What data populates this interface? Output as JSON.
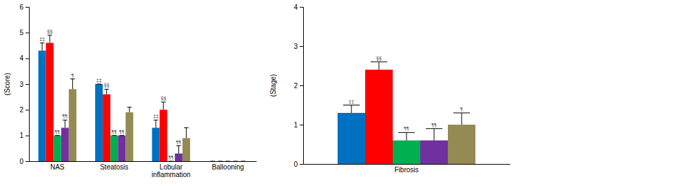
{
  "chart_data": [
    {
      "type": "bar",
      "y_label": "(Score)",
      "categories": [
        "NAS",
        "Steatosis",
        "Lobular inflammation",
        "Ballooning"
      ],
      "ylim": [
        0,
        6
      ],
      "yticks": [
        0,
        1,
        2,
        3,
        4,
        5,
        6
      ],
      "series": [
        {
          "color": "#0070c0",
          "values": [
            4.3,
            3.0,
            1.3,
            0
          ],
          "errors": [
            0.3,
            0,
            0.3,
            0
          ],
          "annotations": [
            "‡‡",
            "‡‡",
            "‡‡",
            null
          ]
        },
        {
          "color": "#ff0000",
          "values": [
            4.6,
            2.6,
            2.0,
            0
          ],
          "errors": [
            0.3,
            0.2,
            0.3,
            0
          ],
          "annotations": [
            "§§",
            "§§",
            "§§",
            null
          ]
        },
        {
          "color": "#00b050",
          "values": [
            1.0,
            1.0,
            0,
            0
          ],
          "errors": [
            0,
            0,
            0,
            0
          ],
          "annotations": [
            "¶¶",
            "¶¶",
            "¶¶",
            null
          ]
        },
        {
          "color": "#7030a0",
          "values": [
            1.3,
            1.0,
            0.3,
            0
          ],
          "errors": [
            0.3,
            0,
            0.3,
            0
          ],
          "annotations": [
            "¶¶",
            "¶¶",
            "¶¶",
            null
          ]
        },
        {
          "color": "#948a54",
          "values": [
            2.8,
            1.9,
            0.9,
            0
          ],
          "errors": [
            0.4,
            0.2,
            0.4,
            0
          ],
          "annotations": [
            "¶",
            null,
            null,
            null
          ]
        }
      ]
    },
    {
      "type": "bar",
      "y_label": "(Stage)",
      "categories": [
        "Fibrosis"
      ],
      "ylim": [
        0,
        4
      ],
      "yticks": [
        0,
        1,
        2,
        3,
        4
      ],
      "series": [
        {
          "color": "#0070c0",
          "values": [
            1.3
          ],
          "errors": [
            0.2
          ],
          "annotations": [
            "‡‡"
          ]
        },
        {
          "color": "#ff0000",
          "values": [
            2.4
          ],
          "errors": [
            0.2
          ],
          "annotations": [
            "§§"
          ]
        },
        {
          "color": "#00b050",
          "values": [
            0.6
          ],
          "errors": [
            0.2
          ],
          "annotations": [
            "¶¶"
          ]
        },
        {
          "color": "#7030a0",
          "values": [
            0.6
          ],
          "errors": [
            0.3
          ],
          "annotations": [
            "¶¶"
          ]
        },
        {
          "color": "#948a54",
          "values": [
            1.0
          ],
          "errors": [
            0.3
          ],
          "annotations": [
            "¶"
          ]
        }
      ]
    }
  ]
}
